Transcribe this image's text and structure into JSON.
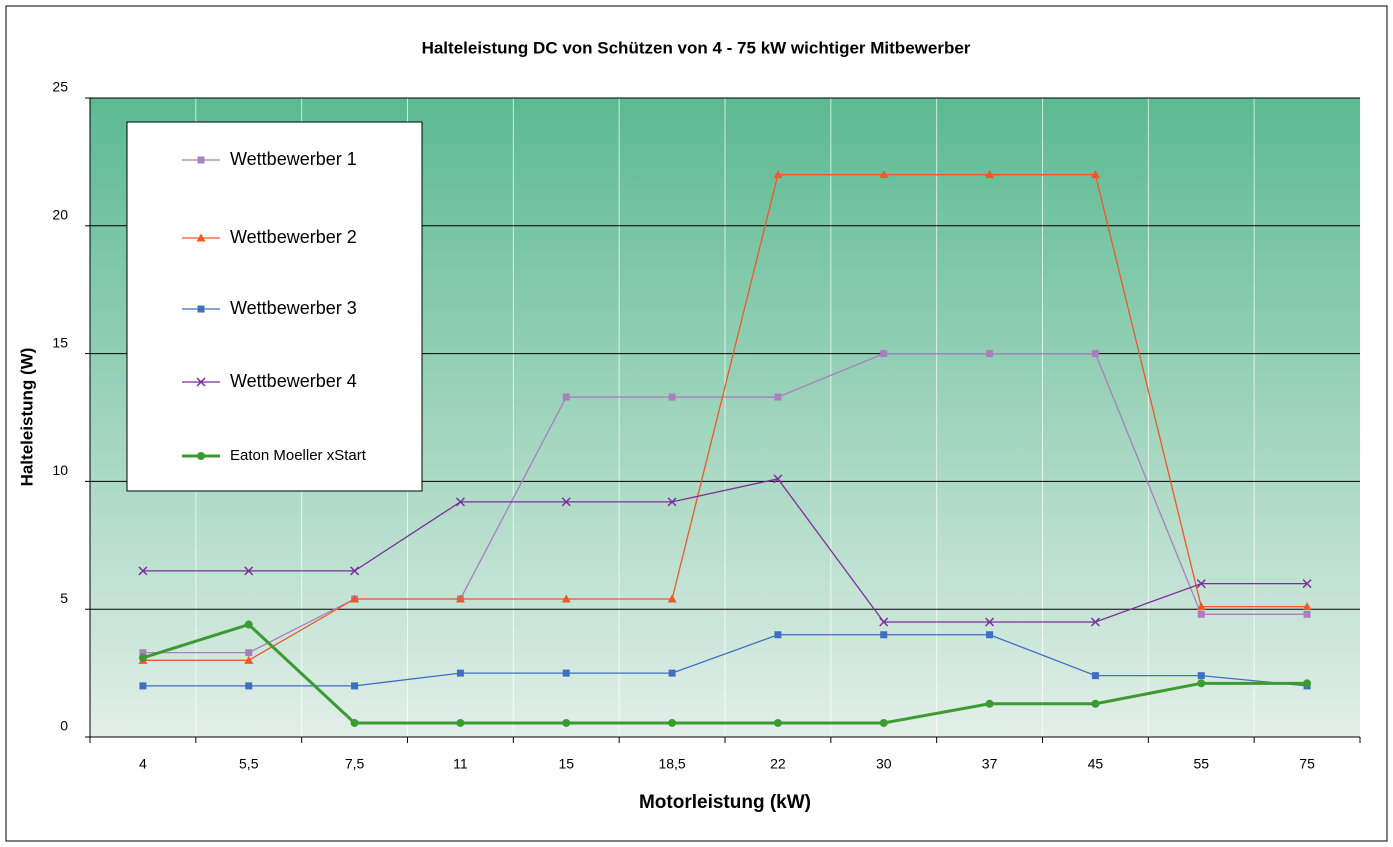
{
  "chart_data": {
    "type": "line",
    "title": "Halteleistung DC von Schützen von 4 - 75 kW wichtiger Mitbewerber",
    "x_label": "Motorleistung (kW)",
    "y_label": "Halteleistung (W)",
    "categories": [
      "4",
      "5,5",
      "7,5",
      "11",
      "15",
      "18,5",
      "22",
      "30",
      "37",
      "45",
      "55",
      "75"
    ],
    "ylim": [
      0,
      25
    ],
    "yticks": [
      0,
      5,
      10,
      15,
      20,
      25
    ],
    "grid": true,
    "legend": "upper left",
    "series": [
      {
        "name": "Wettbewerber 1",
        "color": "#a97fc0",
        "marker": "square",
        "linewidth": 1.3,
        "values": [
          3.3,
          3.3,
          5.4,
          5.4,
          13.3,
          13.3,
          13.3,
          15,
          15,
          15,
          4.8,
          4.8
        ]
      },
      {
        "name": "Wettbewerber 2",
        "color": "#f0582a",
        "marker": "triangle",
        "linewidth": 1.3,
        "values": [
          3,
          3,
          5.4,
          5.4,
          5.4,
          5.4,
          22,
          22,
          22,
          22,
          5.1,
          5.1
        ]
      },
      {
        "name": "Wettbewerber 3",
        "color": "#3e6fc2",
        "marker": "square",
        "linewidth": 1.3,
        "values": [
          2,
          2,
          2,
          2.5,
          2.5,
          2.5,
          4,
          4,
          4,
          2.4,
          2.4,
          2
        ]
      },
      {
        "name": "Wettbewerber 4",
        "color": "#7b2f9c",
        "marker": "x",
        "linewidth": 1.3,
        "values": [
          6.5,
          6.5,
          6.5,
          9.2,
          9.2,
          9.2,
          10.1,
          4.5,
          4.5,
          4.5,
          6,
          6
        ]
      },
      {
        "name": "Eaton Moeller xStart",
        "color": "#3b9a32",
        "marker": "circle",
        "linewidth": 3,
        "values": [
          3.1,
          4.4,
          0.55,
          0.55,
          0.55,
          0.55,
          0.55,
          0.55,
          1.3,
          1.3,
          2.1,
          2.1
        ]
      }
    ]
  }
}
